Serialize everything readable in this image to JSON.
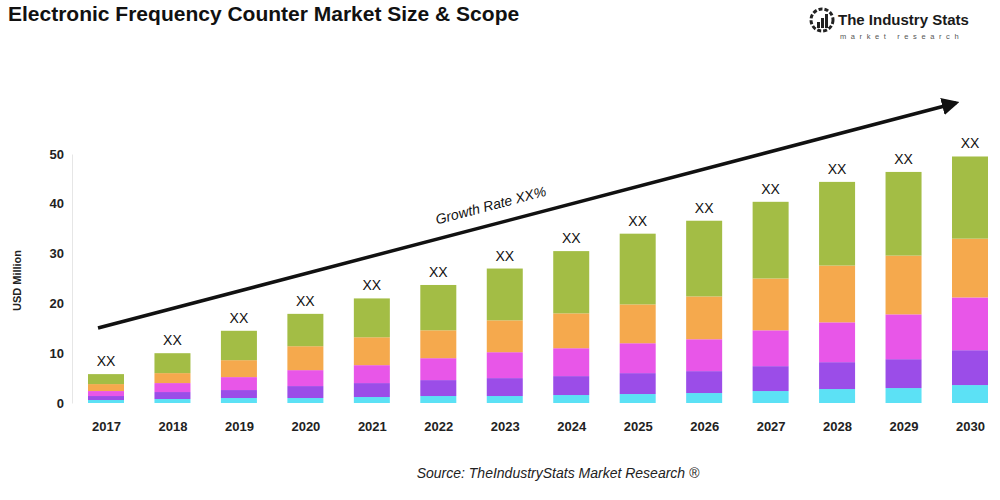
{
  "chart_data": {
    "type": "bar",
    "stacked": true,
    "grid": false,
    "title": "Electronic Frequency Counter Market Size & Scope",
    "y_label": "USD Million",
    "annotation": "Growth Rate XX%",
    "source": "Source: TheIndustryStats Market Research ®",
    "logo": {
      "title": "The Industry Stats",
      "subtitle": "market research"
    },
    "categories": [
      "2017",
      "2018",
      "2019",
      "2020",
      "2021",
      "2022",
      "2023",
      "2024",
      "2025",
      "2026",
      "2027",
      "2028",
      "2029",
      "2030"
    ],
    "bar_labels": [
      "XX",
      "XX",
      "XX",
      "XX",
      "XX",
      "XX",
      "XX",
      "XX",
      "XX",
      "XX",
      "XX",
      "XX",
      "XX",
      "XX"
    ],
    "series": [
      {
        "color": "#5ce1f5",
        "values": [
          0.6,
          0.8,
          1.0,
          1.0,
          1.2,
          1.4,
          1.4,
          1.6,
          1.8,
          2.0,
          2.4,
          2.8,
          3.0,
          3.6
        ]
      },
      {
        "color": "#9b4de8",
        "values": [
          0.8,
          1.4,
          1.6,
          2.4,
          2.8,
          3.2,
          3.6,
          3.8,
          4.2,
          4.4,
          5.0,
          5.4,
          5.8,
          7.0
        ]
      },
      {
        "color": "#e856e8",
        "values": [
          1.0,
          1.8,
          2.6,
          3.2,
          3.6,
          4.4,
          5.2,
          5.6,
          6.0,
          6.4,
          7.2,
          8.0,
          9.0,
          10.6
        ]
      },
      {
        "color": "#f5a94d",
        "values": [
          1.4,
          2.0,
          3.4,
          4.8,
          5.6,
          5.6,
          6.4,
          7.0,
          7.8,
          8.6,
          10.4,
          11.4,
          11.8,
          11.8
        ]
      },
      {
        "color": "#a3bd45",
        "values": [
          2.0,
          4.0,
          5.9,
          6.5,
          7.8,
          9.1,
          10.4,
          12.5,
          14.2,
          15.2,
          15.4,
          16.8,
          16.8,
          16.5
        ]
      }
    ],
    "ylim": [
      0,
      50
    ],
    "yticks": [
      0,
      10,
      20,
      30,
      40,
      50
    ]
  }
}
